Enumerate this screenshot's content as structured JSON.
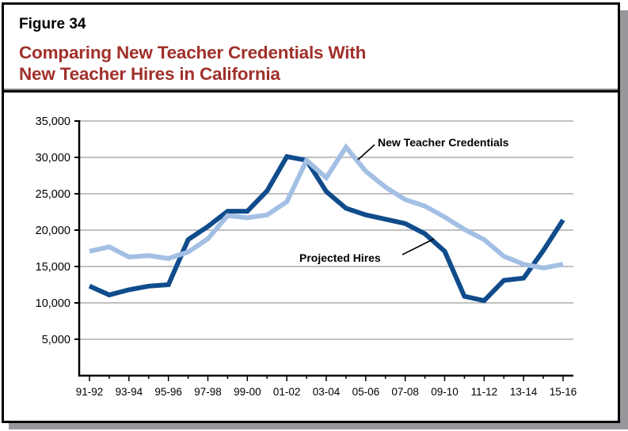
{
  "figure": {
    "label": "Figure 34",
    "title_line1": "Comparing New Teacher Credentials With",
    "title_line2": "New Teacher Hires in California"
  },
  "colors": {
    "title": "#a0302a",
    "credentials": "#a4bfe4",
    "hires": "#104c8c",
    "gridline": "#9a9a9a",
    "shadow": "#98989c"
  },
  "chart_data": {
    "type": "line",
    "title": "Comparing New Teacher Credentials With New Teacher Hires in California",
    "xlabel": "",
    "ylabel": "",
    "ylim": [
      0,
      35000
    ],
    "yticks": [
      5000,
      10000,
      15000,
      20000,
      25000,
      30000,
      35000
    ],
    "ytick_labels": [
      "5,000",
      "10,000",
      "15,000",
      "20,000",
      "25,000",
      "30,000",
      "35,000"
    ],
    "grid": true,
    "legend": "inline annotations",
    "x": [
      "91-92",
      "92-93",
      "93-94",
      "94-95",
      "95-96",
      "96-97",
      "97-98",
      "98-99",
      "99-00",
      "00-01",
      "01-02",
      "02-03",
      "03-04",
      "04-05",
      "05-06",
      "06-07",
      "07-08",
      "08-09",
      "09-10",
      "10-11",
      "11-12",
      "12-13",
      "13-14",
      "14-15",
      "15-16"
    ],
    "xtick_labels": [
      "91-92",
      "93-94",
      "95-96",
      "97-98",
      "99-00",
      "01-02",
      "03-04",
      "05-06",
      "07-08",
      "09-10",
      "11-12",
      "13-14",
      "15-16"
    ],
    "series": [
      {
        "name": "New Teacher Credentials",
        "values": [
          17100,
          17700,
          16300,
          16500,
          16100,
          17000,
          18800,
          22000,
          21700,
          22100,
          23900,
          29600,
          27200,
          31400,
          28100,
          25900,
          24200,
          23300,
          21800,
          20100,
          18700,
          16400,
          15300,
          14800,
          15300
        ]
      },
      {
        "name": "Projected Hires",
        "values": [
          12300,
          11100,
          11800,
          12300,
          12500,
          18700,
          20500,
          22600,
          22600,
          25400,
          30100,
          29600,
          25300,
          23000,
          22100,
          21500,
          20900,
          19500,
          17100,
          10900,
          10300,
          13100,
          13400,
          17200,
          21400
        ]
      }
    ],
    "annotations": [
      {
        "text": "New Teacher Credentials",
        "series": "New Teacher Credentials"
      },
      {
        "text": "Projected Hires",
        "series": "Projected Hires"
      }
    ]
  }
}
